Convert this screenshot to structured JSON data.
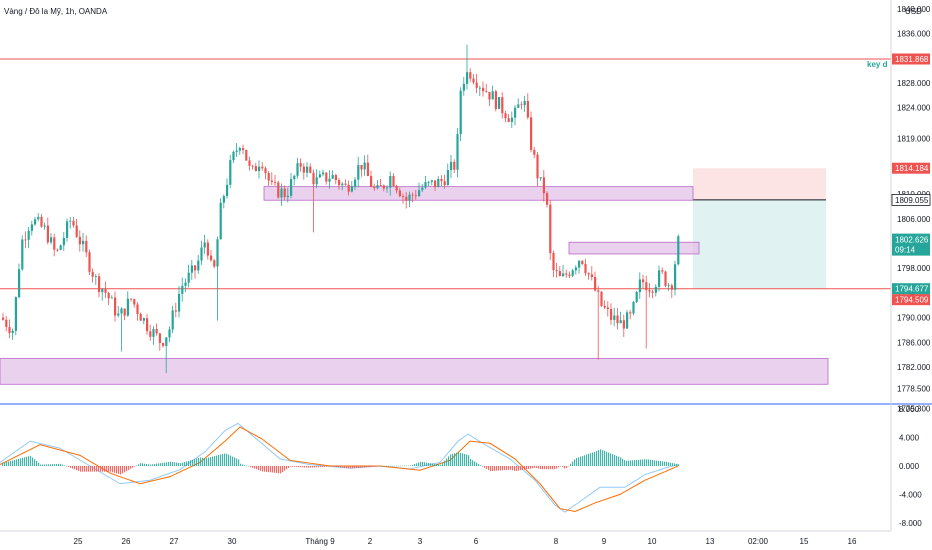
{
  "header": {
    "title": "Vàng / Đô la Mỹ, 1h, OANDA",
    "currency": "USD"
  },
  "annotation": {
    "text": "key d"
  },
  "colors": {
    "up": "#26a69a",
    "down": "#ef5350",
    "zone": "#e1bee7",
    "zone_border": "#ba68c8",
    "red_line": "#ef5350",
    "target_fill": "#e0f2f1",
    "stop_fill": "#fde4e4",
    "macd_line": "#2962ff",
    "signal_line": "#ff6d00",
    "separator": "#2962ff"
  },
  "price_axis": {
    "ticks": [
      "1840.000",
      "1836.000",
      "1832.000",
      "1828.000",
      "1824.000",
      "1819.000",
      "1814.000",
      "1810.000",
      "1806.000",
      "1802.000",
      "1798.000",
      "1794.000",
      "1790.000",
      "1786.000",
      "1782.000",
      "1778.500",
      "1775.300"
    ],
    "tags": {
      "line_top": "1831.868",
      "stop": "1814.184",
      "entry": "1809.055",
      "current": "1802.626",
      "countdown": "09:14",
      "line_mid": "1794.677",
      "mid2": "1794.509"
    }
  },
  "macd_axis": {
    "ticks": [
      "8.000",
      "4.000",
      "0.000",
      "-4.000",
      "-8.000"
    ]
  },
  "time_axis": {
    "labels": [
      "25",
      "26",
      "27",
      "30",
      "Tháng 9",
      "2",
      "3",
      "6",
      "8",
      "9",
      "10",
      "13",
      "02:00",
      "15",
      "16"
    ]
  },
  "chart_data": {
    "type": "candlestick",
    "title": "Vàng / Đô la Mỹ, 1h, OANDA",
    "ylim": [
      1775.3,
      1841.0
    ],
    "x": [
      "25",
      "26",
      "27",
      "30",
      "Tháng 9",
      "2",
      "3",
      "6",
      "8",
      "9",
      "10",
      "13",
      "02:00",
      "15",
      "16"
    ],
    "series": [
      {
        "name": "price",
        "path": [
          [
            0,
            1790
          ],
          [
            12,
            1788
          ],
          [
            20,
            1802
          ],
          [
            30,
            1806
          ],
          [
            45,
            1804
          ],
          [
            55,
            1800
          ],
          [
            70,
            1806
          ],
          [
            80,
            1802
          ],
          [
            95,
            1796
          ],
          [
            105,
            1794
          ],
          [
            118,
            1790
          ],
          [
            130,
            1793
          ],
          [
            145,
            1789
          ],
          [
            160,
            1786
          ],
          [
            168,
            1788
          ],
          [
            180,
            1795
          ],
          [
            195,
            1798
          ],
          [
            205,
            1803
          ],
          [
            212,
            1796
          ],
          [
            220,
            1808
          ],
          [
            230,
            1815
          ],
          [
            240,
            1819
          ],
          [
            250,
            1813
          ],
          [
            260,
            1816
          ],
          [
            270,
            1811
          ],
          [
            285,
            1810
          ],
          [
            300,
            1815
          ],
          [
            315,
            1812
          ],
          [
            330,
            1813
          ],
          [
            345,
            1811
          ],
          [
            360,
            1815
          ],
          [
            375,
            1810
          ],
          [
            390,
            1813
          ],
          [
            405,
            1809
          ],
          [
            420,
            1811
          ],
          [
            440,
            1812
          ],
          [
            455,
            1815
          ],
          [
            460,
            1828
          ],
          [
            468,
            1830
          ],
          [
            478,
            1828
          ],
          [
            490,
            1826
          ],
          [
            500,
            1824
          ],
          [
            512,
            1822
          ],
          [
            522,
            1826
          ],
          [
            530,
            1818
          ],
          [
            538,
            1812
          ],
          [
            545,
            1810
          ],
          [
            550,
            1798
          ],
          [
            560,
            1796
          ],
          [
            570,
            1798
          ],
          [
            580,
            1800
          ],
          [
            590,
            1796
          ],
          [
            600,
            1792
          ],
          [
            610,
            1790
          ],
          [
            620,
            1789
          ],
          [
            630,
            1790
          ],
          [
            640,
            1796
          ],
          [
            650,
            1795
          ],
          [
            660,
            1797
          ],
          [
            670,
            1795
          ],
          [
            678,
            1803
          ]
        ]
      }
    ],
    "zones": [
      {
        "from": 1809.0,
        "to": 1811.2,
        "x_start": 264,
        "x_end": 693
      },
      {
        "from": 1800.3,
        "to": 1802.2,
        "x_start": 569,
        "x_end": 699
      },
      {
        "from": 1779.2,
        "to": 1783.4,
        "x_start": 0,
        "x_end": 828
      }
    ],
    "lines": [
      {
        "name": "resistance",
        "value": 1831.868
      },
      {
        "name": "support",
        "value": 1794.677
      }
    ],
    "position": {
      "entry": 1809.055,
      "stop": 1814.184,
      "target": 1794.677,
      "x_start": 693,
      "x_end": 826
    }
  }
}
